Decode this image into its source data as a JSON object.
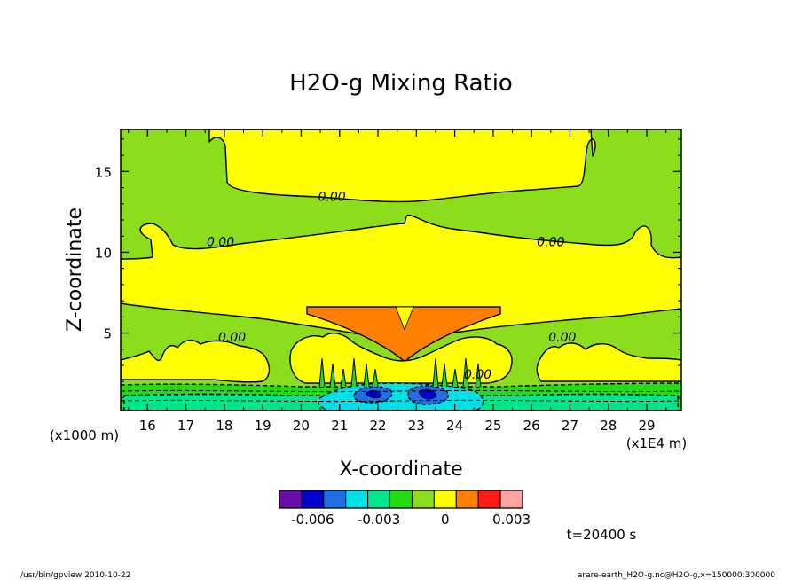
{
  "chart_data": {
    "type": "contour",
    "title": "H2O-g Mixing Ratio",
    "xlabel": "X-coordinate",
    "ylabel": "Z-coordinate",
    "x_unit_label": "(x1E4 m)",
    "y_unit_label": "(x1000 m)",
    "xlim": [
      15.3,
      29.9
    ],
    "ylim": [
      0.2,
      17.6
    ],
    "x_ticks": [
      16,
      17,
      18,
      19,
      20,
      21,
      22,
      23,
      24,
      25,
      26,
      27,
      28,
      29
    ],
    "y_ticks": [
      5,
      10,
      15
    ],
    "contour_labels": [
      {
        "text": "0.00",
        "x": 20.8,
        "y": 13.4
      },
      {
        "text": "0.00",
        "x": 17.9,
        "y": 10.6
      },
      {
        "text": "0.00",
        "x": 26.5,
        "y": 10.6
      },
      {
        "text": "0.00",
        "x": 18.2,
        "y": 4.7
      },
      {
        "text": "0.00",
        "x": 26.8,
        "y": 4.7
      },
      {
        "text": "0.00",
        "x": 24.6,
        "y": 2.4
      }
    ],
    "colorbar": {
      "colors": [
        "#6a0dad",
        "#0000cd",
        "#1e6ee6",
        "#00e0e6",
        "#00e68a",
        "#22dd11",
        "#8cdd1b",
        "#ffff00",
        "#ff7f00",
        "#ff1a1a",
        "#ffa3a3"
      ],
      "tick_labels": [
        "-0.006",
        "-0.003",
        "0",
        "0.003"
      ],
      "tick_values": [
        -0.006,
        -0.003,
        0,
        0.003
      ],
      "range": [
        -0.0075,
        0.0035
      ]
    },
    "palette": {
      "green": "#8cdd1b",
      "yellow": "#ffff00",
      "orange": "#ff7f00",
      "green_dark": "#22dd11",
      "teal": "#00e68a",
      "cyan": "#00e0e6",
      "blue": "#1e6ee6",
      "navy": "#0000cd"
    }
  },
  "time_label": "t=20400 s",
  "footer": {
    "left": "/usr/bin/gpview   2010-10-22",
    "right": "arare-earth_H2O-g.nc@H2O-g,x=150000:300000"
  }
}
